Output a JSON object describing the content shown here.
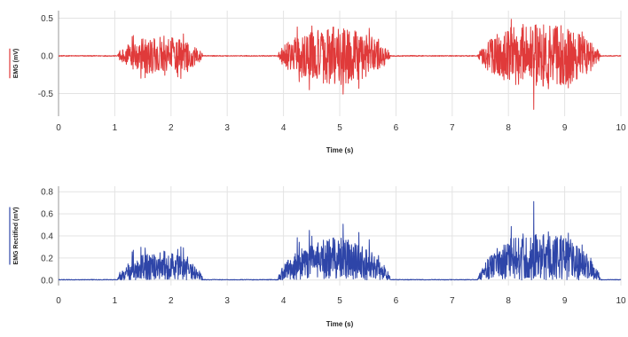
{
  "chart_data": [
    {
      "type": "line",
      "title": "",
      "xlabel": "Time (s)",
      "ylabel": "EMG (mV)",
      "xlim": [
        0,
        10
      ],
      "ylim": [
        -0.8,
        0.6
      ],
      "x_ticks": [
        0,
        1,
        2,
        3,
        4,
        5,
        6,
        7,
        8,
        9,
        10
      ],
      "y_ticks": [
        -0.5,
        0.0,
        0.5
      ],
      "x_tick_labels": [
        "0",
        "1",
        "2",
        "3",
        "4",
        "5",
        "6",
        "7",
        "8",
        "9",
        "10"
      ],
      "y_tick_labels": [
        "-0.5",
        "0.0",
        "0.5"
      ],
      "grid": true,
      "color": "#e03a3a",
      "bursts": [
        {
          "start": 1.05,
          "end": 2.65,
          "peak": 0.42
        },
        {
          "start": 3.9,
          "end": 6.0,
          "peak": 0.62
        },
        {
          "start": 7.45,
          "end": 9.75,
          "peak": 0.72
        }
      ],
      "series": [
        {
          "values": []
        }
      ]
    },
    {
      "type": "line",
      "title": "",
      "xlabel": "Time (s)",
      "ylabel": "EMG Rectified (mV)",
      "xlim": [
        0,
        10
      ],
      "ylim": [
        -0.05,
        0.85
      ],
      "x_ticks": [
        0,
        1,
        2,
        3,
        4,
        5,
        6,
        7,
        8,
        9,
        10
      ],
      "y_ticks": [
        0.0,
        0.2,
        0.4,
        0.6,
        0.8
      ],
      "x_tick_labels": [
        "0",
        "1",
        "2",
        "3",
        "4",
        "5",
        "6",
        "7",
        "8",
        "9",
        "10"
      ],
      "y_tick_labels": [
        "0.0",
        "0.2",
        "0.4",
        "0.6",
        "0.8"
      ],
      "grid": true,
      "color": "#2e45a8",
      "bursts": [
        {
          "start": 1.05,
          "end": 2.65,
          "peak": 0.42
        },
        {
          "start": 3.9,
          "end": 6.0,
          "peak": 0.62
        },
        {
          "start": 7.45,
          "end": 9.75,
          "peak": 0.76
        }
      ],
      "series": [
        {
          "values": []
        }
      ]
    }
  ]
}
